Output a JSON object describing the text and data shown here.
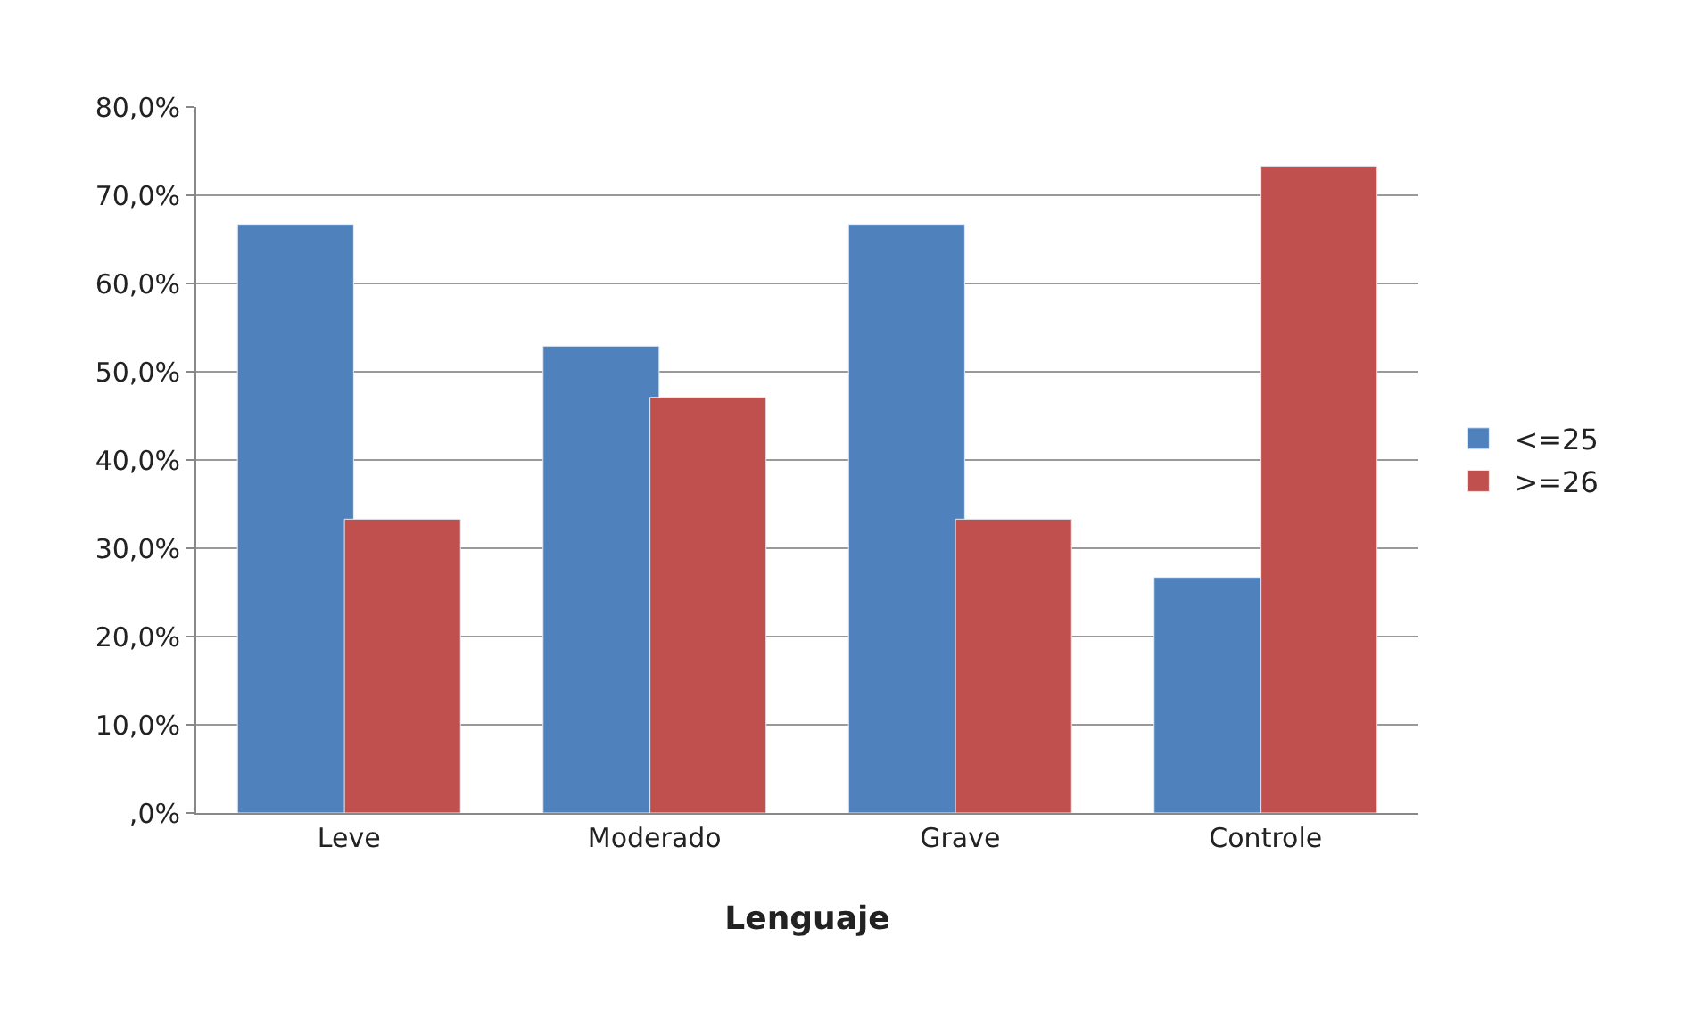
{
  "chart_data": {
    "type": "bar",
    "xlabel": "Lenguaje",
    "categories": [
      "Leve",
      "Moderado",
      "Grave",
      "Controle"
    ],
    "series": [
      {
        "name": "<=25",
        "color": "#4f81bd",
        "values": [
          66.7,
          52.9,
          66.7,
          26.7
        ]
      },
      {
        "name": ">=26",
        "color": "#c0504d",
        "values": [
          33.3,
          47.1,
          33.3,
          73.3
        ]
      }
    ],
    "ylim": [
      0,
      80
    ],
    "yticks": [
      {
        "value": 0,
        "label": ",0%"
      },
      {
        "value": 10,
        "label": "10,0%"
      },
      {
        "value": 20,
        "label": "20,0%"
      },
      {
        "value": 30,
        "label": "30,0%"
      },
      {
        "value": 40,
        "label": "40,0%"
      },
      {
        "value": 50,
        "label": "50,0%"
      },
      {
        "value": 60,
        "label": "60,0%"
      },
      {
        "value": 70,
        "label": "70,0%"
      },
      {
        "value": 80,
        "label": "80,0%"
      }
    ],
    "grid": "y",
    "legend": "right"
  }
}
